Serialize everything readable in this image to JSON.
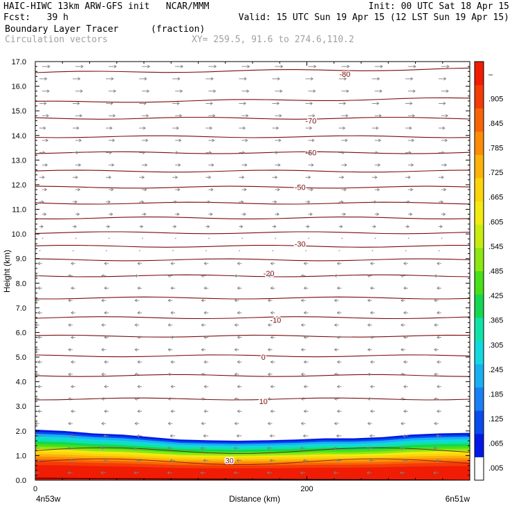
{
  "header": {
    "line1_left": "HAIC-HIWC 13km ARW-GFS init   NCAR/MMM",
    "line1_right": "Init: 00 UTC Sat 18 Apr 15",
    "line2_left": "Fcst:   39 h",
    "line2_right": "Valid: 15 UTC Sun 19 Apr 15 (12 LST Sun 19 Apr 15)",
    "field_name": "Boundary Layer Tracer",
    "field_units": "(fraction)",
    "vector_label": "Circulation vectors",
    "xy_label": "XY= 259.5, 91.6 to 274.6,110.2"
  },
  "colors": {
    "contour": "#7a0a0a",
    "vector": "#7f7f7f",
    "colorbar": [
      "#ffffff",
      "#0019e6",
      "#0a4bf0",
      "#1a7ff5",
      "#18b0f0",
      "#12d8e0",
      "#10e3a8",
      "#14d850",
      "#48e018",
      "#8ce814",
      "#c8ec10",
      "#f2ea10",
      "#fcd40c",
      "#fcb20a",
      "#fc8c08",
      "#f86408",
      "#f43c06",
      "#f01c04"
    ]
  },
  "chart_data": {
    "type": "heatmap",
    "xlabel": "Distance (km)",
    "ylabel": "Height (km)",
    "xlim": [
      0,
      320
    ],
    "ylim": [
      0.0,
      17.0
    ],
    "x_ticks": [
      {
        "value": 0,
        "label": "0"
      },
      {
        "value": 200,
        "label": "200"
      }
    ],
    "x_end_labels": [
      "4n53w",
      "6n51w"
    ],
    "y_ticks": [
      "0.0",
      "1.0",
      "2.0",
      "3.0",
      "4.0",
      "5.0",
      "6.0",
      "7.0",
      "8.0",
      "9.0",
      "10.0",
      "11.0",
      "12.0",
      "13.0",
      "14.0",
      "15.0",
      "16.0",
      "17.0"
    ],
    "colorbar_labels": [
      ".005",
      ".065",
      ".125",
      ".185",
      ".245",
      ".305",
      ".365",
      ".425",
      ".485",
      ".545",
      ".605",
      ".665",
      ".725",
      ".785",
      ".845",
      ".905",
      "–"
    ],
    "contour_labels": [
      {
        "label": "-80",
        "x": 228,
        "y": 16.5
      },
      {
        "label": "-70",
        "x": 203,
        "y": 14.6
      },
      {
        "label": "-60",
        "x": 203,
        "y": 13.3
      },
      {
        "label": "-50",
        "x": 195,
        "y": 11.9
      },
      {
        "label": "-30",
        "x": 195,
        "y": 9.6
      },
      {
        "label": "-20",
        "x": 172,
        "y": 8.4
      },
      {
        "label": "-10",
        "x": 177,
        "y": 6.5
      },
      {
        "label": "0",
        "x": 168,
        "y": 5.0
      },
      {
        "label": "10",
        "x": 168,
        "y": 3.2
      },
      {
        "label": "30",
        "x": 143,
        "y": 0.8
      }
    ],
    "contour_levels_km": [
      16.55,
      15.35,
      14.7,
      13.95,
      13.3,
      12.55,
      11.9,
      11.25,
      10.65,
      10.05,
      9.5,
      8.95,
      8.3,
      7.4,
      6.6,
      5.85,
      5.05,
      4.25,
      3.3
    ],
    "wind_upper": "westerly above ~10 km",
    "wind_lower": "easterly below ~10 km",
    "tracer_top_km": [
      2.05,
      2.0,
      1.9,
      1.85,
      1.75,
      1.65,
      1.62,
      1.6,
      1.62,
      1.65,
      1.7,
      1.7,
      1.75,
      1.85,
      1.9,
      1.92
    ]
  }
}
